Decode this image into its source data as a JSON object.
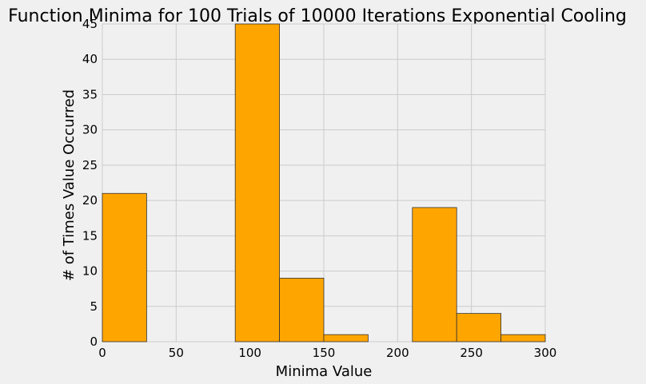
{
  "chart_data": {
    "type": "bar",
    "title": "Function Minima for 100 Trials of 10000 Iterations Exponential Cooling",
    "xlabel": "Minima Value",
    "ylabel": "# of Times Value Occurred",
    "xlim": [
      0,
      300
    ],
    "ylim": [
      0,
      45
    ],
    "xticks": [
      "0",
      "50",
      "100",
      "150",
      "200",
      "250",
      "300"
    ],
    "yticks": [
      "0",
      "5",
      "10",
      "15",
      "20",
      "25",
      "30",
      "35",
      "40",
      "45"
    ],
    "grid": true,
    "bar_color": "#ffa500",
    "bins": [
      {
        "x0": 0,
        "x1": 30,
        "count": 21
      },
      {
        "x0": 30,
        "x1": 60,
        "count": 0
      },
      {
        "x0": 60,
        "x1": 90,
        "count": 0
      },
      {
        "x0": 90,
        "x1": 120,
        "count": 45
      },
      {
        "x0": 120,
        "x1": 150,
        "count": 9
      },
      {
        "x0": 150,
        "x1": 180,
        "count": 1
      },
      {
        "x0": 180,
        "x1": 210,
        "count": 0
      },
      {
        "x0": 210,
        "x1": 240,
        "count": 19
      },
      {
        "x0": 240,
        "x1": 270,
        "count": 4
      },
      {
        "x0": 270,
        "x1": 300,
        "count": 1
      }
    ]
  }
}
